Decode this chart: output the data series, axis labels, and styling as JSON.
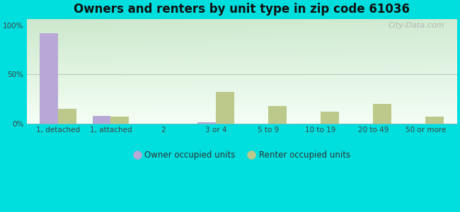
{
  "title": "Owners and renters by unit type in zip code 61036",
  "categories": [
    "1, detached",
    "1, attached",
    "2",
    "3 or 4",
    "5 to 9",
    "10 to 19",
    "20 to 49",
    "50 or more"
  ],
  "owner_values": [
    92,
    8,
    0,
    1,
    0,
    0,
    0,
    0
  ],
  "renter_values": [
    15,
    7,
    0,
    32,
    18,
    12,
    20,
    7
  ],
  "owner_color": "#b8a8d8",
  "renter_color": "#bcc98a",
  "background_outer": "#00dede",
  "yticks": [
    0,
    50,
    100
  ],
  "ylim": [
    0,
    107
  ],
  "bar_width": 0.35,
  "legend_owner": "Owner occupied units",
  "legend_renter": "Renter occupied units",
  "title_fontsize": 12,
  "tick_fontsize": 7.5,
  "legend_fontsize": 8.5,
  "grid_color": "#ccddcc",
  "bg_gradient_top": "#cce8cc",
  "bg_gradient_bottom": "#f0faf0",
  "bg_gradient_right": "#e8f5f8"
}
